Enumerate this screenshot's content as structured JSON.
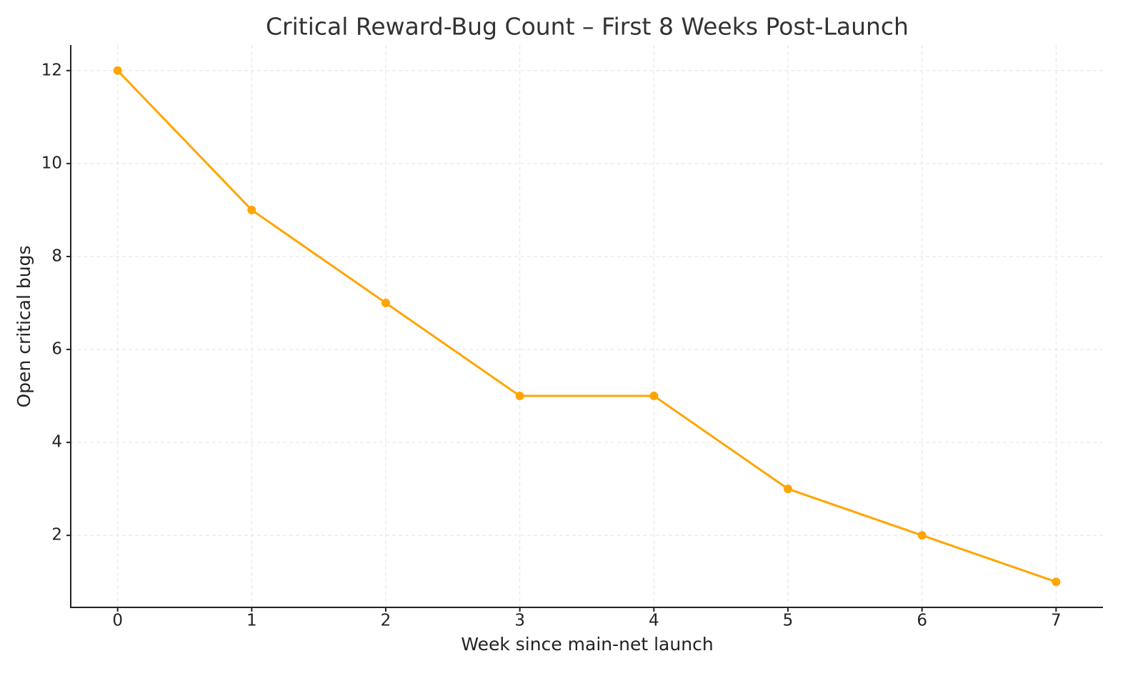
{
  "chart_data": {
    "type": "line",
    "title": "Critical Reward-Bug Count – First 8 Weeks Post-Launch",
    "x_label": "Week since main-net launch",
    "y_label": "Open critical bugs",
    "x": [
      0,
      1,
      2,
      3,
      4,
      5,
      6,
      7
    ],
    "series": [
      {
        "name": "Open critical bugs",
        "color": "#ffa500",
        "values": [
          12,
          9,
          7,
          5,
          5,
          3,
          2,
          1
        ]
      }
    ],
    "xlim": [
      -0.35,
      7.35
    ],
    "ylim": [
      0.45,
      12.55
    ],
    "xticks": [
      0,
      1,
      2,
      3,
      4,
      5,
      6,
      7
    ],
    "yticks": [
      2,
      4,
      6,
      8,
      10,
      12
    ],
    "grid": true,
    "markers": true
  }
}
